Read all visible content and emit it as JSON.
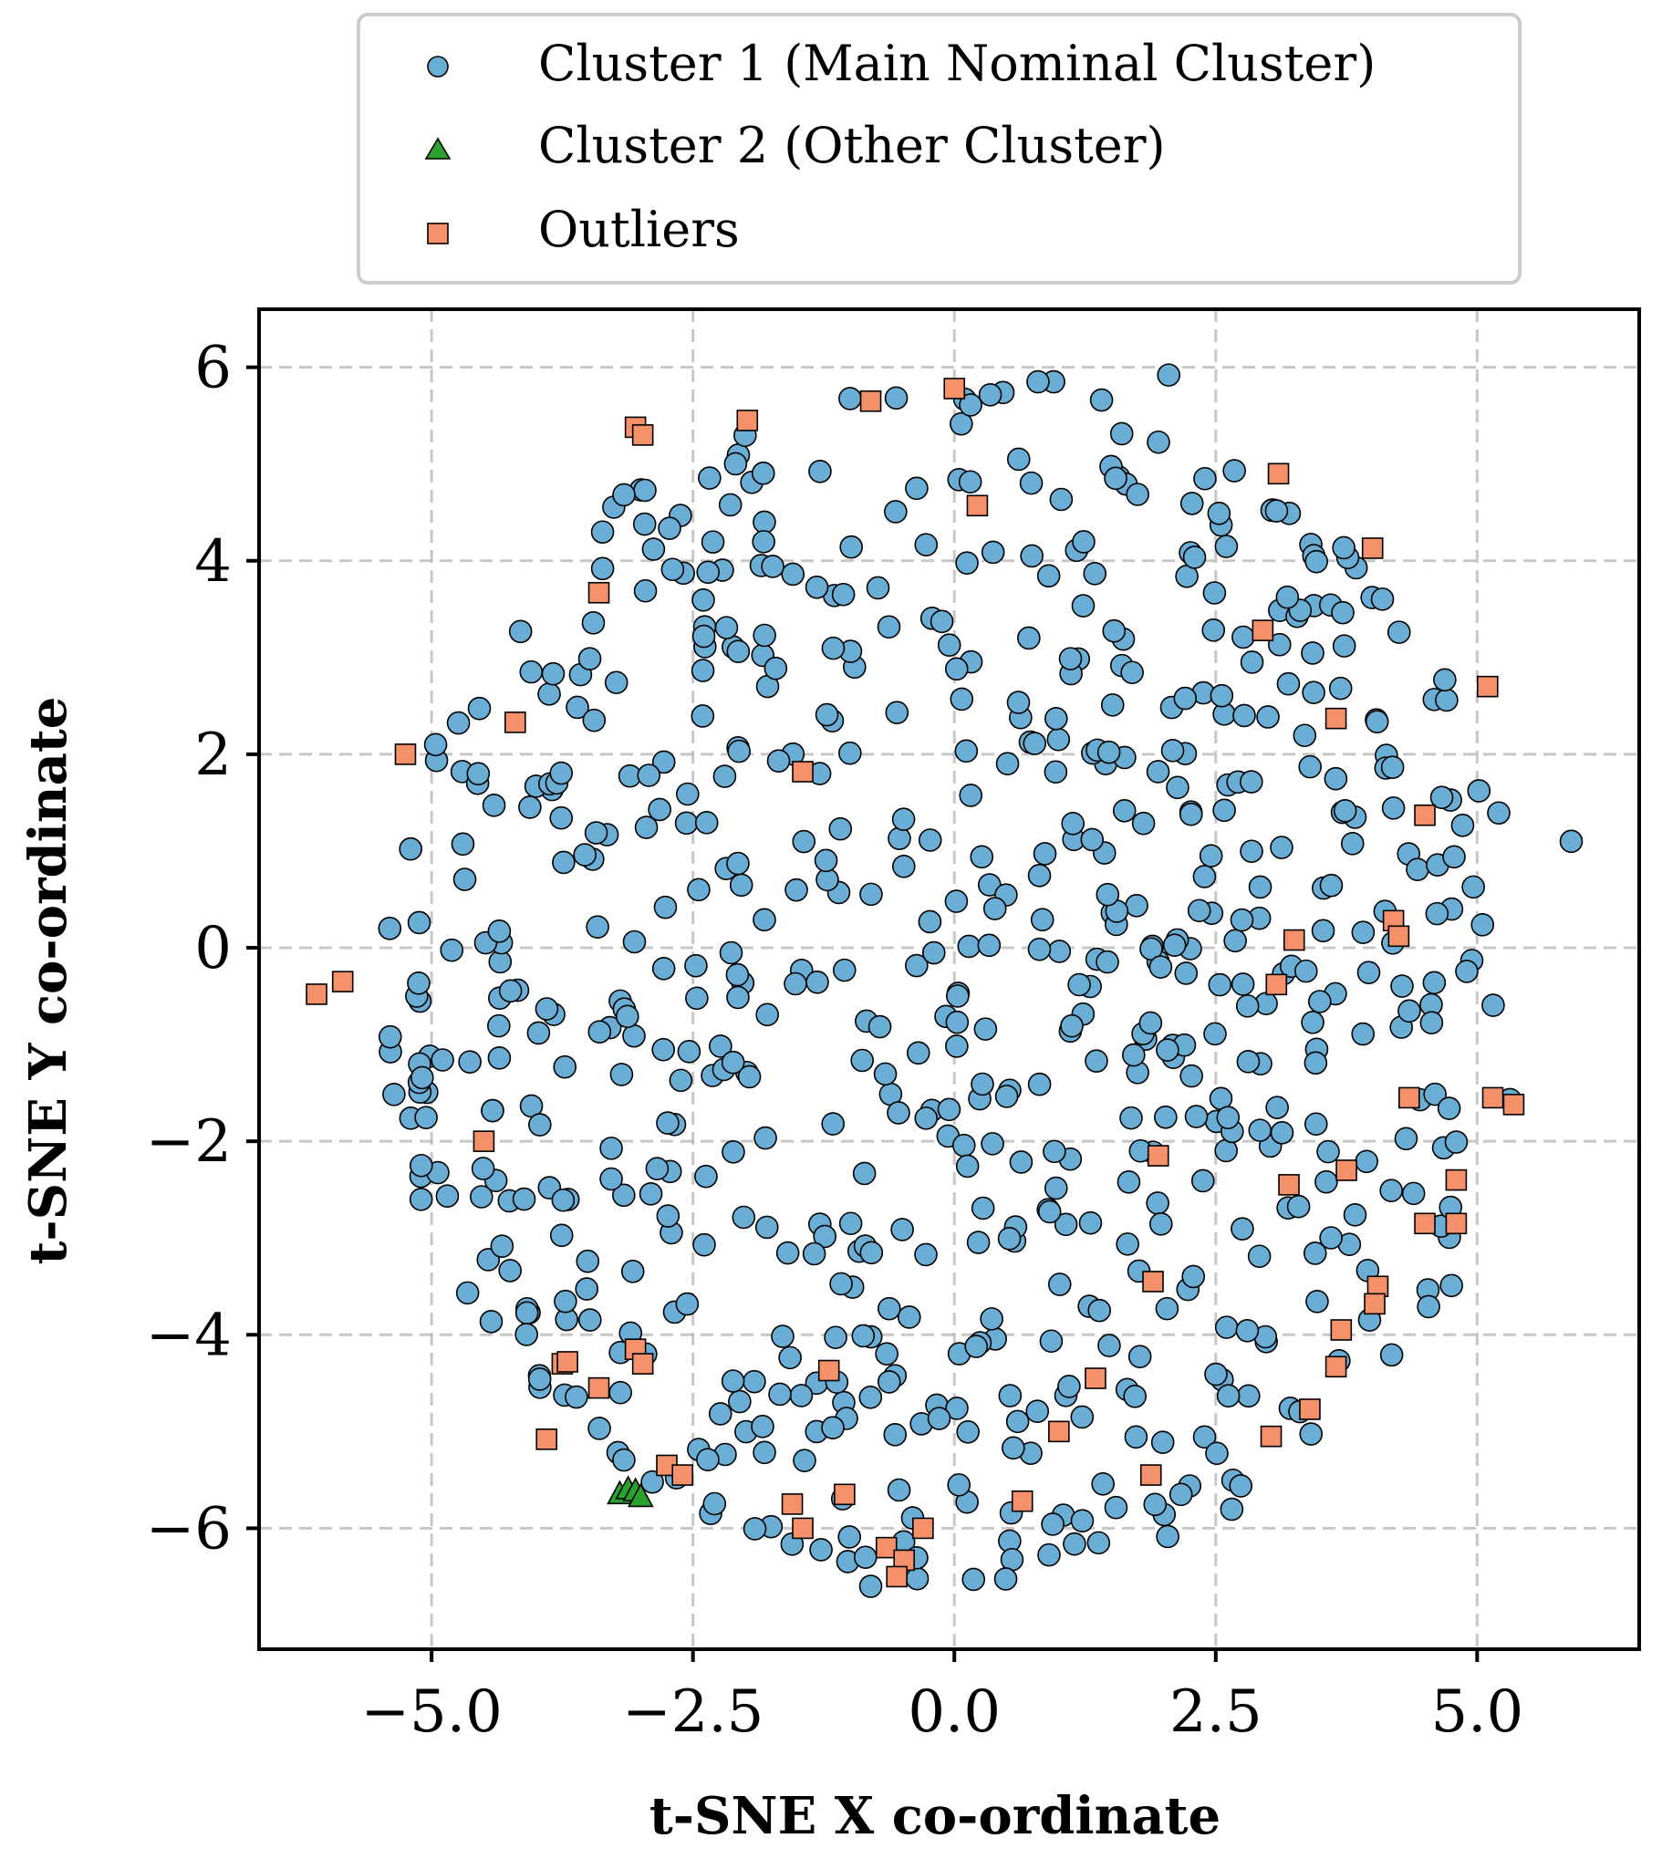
{
  "chart_data": {
    "type": "scatter",
    "xlabel": "t-SNE X co-ordinate",
    "ylabel": "t-SNE Y co-ordinate",
    "xlim": [
      -6.65,
      6.55
    ],
    "ylim": [
      -7.25,
      6.6
    ],
    "xticks": [
      -5.0,
      -2.5,
      0.0,
      2.5,
      5.0
    ],
    "xtick_labels": [
      "−5.0",
      "−2.5",
      "0.0",
      "2.5",
      "5.0"
    ],
    "yticks": [
      -6,
      -4,
      -2,
      0,
      2,
      4,
      6
    ],
    "ytick_labels": [
      "−6",
      "−4",
      "−2",
      "0",
      "2",
      "4",
      "6"
    ],
    "grid": true,
    "legend_position": "top-center (outside plot)",
    "colors": {
      "cluster1": "#6aaed6",
      "cluster2": "#2ca02c",
      "outliers": "#f4916b"
    },
    "series": [
      {
        "name": "Cluster 1 (Main Nominal Cluster)",
        "marker": "circle",
        "seed": 7,
        "count": 700,
        "x_range": [
          -5.5,
          5.5
        ],
        "y_range": [
          -6.6,
          5.9
        ],
        "extra_points": [
          {
            "x": 5.9,
            "y": 1.1
          },
          {
            "x": 2.05,
            "y": 5.92
          },
          {
            "x": 0.95,
            "y": 5.85
          },
          {
            "x": 0.8,
            "y": 5.85
          },
          {
            "x": -5.4,
            "y": 0.2
          },
          {
            "x": -5.1,
            "y": -2.6
          },
          {
            "x": -0.8,
            "y": -6.6
          },
          {
            "x": -0.85,
            "y": -6.3
          }
        ]
      },
      {
        "name": "Cluster 2 (Other Cluster)",
        "marker": "triangle",
        "points": [
          {
            "x": -3.2,
            "y": -5.65
          },
          {
            "x": -3.12,
            "y": -5.6
          },
          {
            "x": -3.05,
            "y": -5.62
          },
          {
            "x": -3.0,
            "y": -5.68
          }
        ]
      },
      {
        "name": "Outliers",
        "marker": "square",
        "points": [
          {
            "x": -3.05,
            "y": 5.38
          },
          {
            "x": -2.98,
            "y": 5.3
          },
          {
            "x": -1.98,
            "y": 5.45
          },
          {
            "x": -0.8,
            "y": 5.65
          },
          {
            "x": 0.0,
            "y": 5.78
          },
          {
            "x": 0.22,
            "y": 4.57
          },
          {
            "x": 3.1,
            "y": 4.9
          },
          {
            "x": 4.0,
            "y": 4.13
          },
          {
            "x": 2.95,
            "y": 3.28
          },
          {
            "x": 5.1,
            "y": 2.7
          },
          {
            "x": 3.65,
            "y": 2.37
          },
          {
            "x": -3.4,
            "y": 3.67
          },
          {
            "x": -4.2,
            "y": 2.33
          },
          {
            "x": -5.25,
            "y": 2.0
          },
          {
            "x": -1.45,
            "y": 1.82
          },
          {
            "x": 4.5,
            "y": 1.37
          },
          {
            "x": 4.2,
            "y": 0.28
          },
          {
            "x": 4.25,
            "y": 0.12
          },
          {
            "x": 3.25,
            "y": 0.08
          },
          {
            "x": 3.08,
            "y": -0.38
          },
          {
            "x": -6.1,
            "y": -0.48
          },
          {
            "x": -5.85,
            "y": -0.35
          },
          {
            "x": -4.5,
            "y": -2.0
          },
          {
            "x": 5.15,
            "y": -1.55
          },
          {
            "x": 5.35,
            "y": -1.62
          },
          {
            "x": 4.35,
            "y": -1.55
          },
          {
            "x": 1.95,
            "y": -2.15
          },
          {
            "x": 3.2,
            "y": -2.45
          },
          {
            "x": 3.75,
            "y": -2.3
          },
          {
            "x": 4.8,
            "y": -2.4
          },
          {
            "x": 4.5,
            "y": -2.85
          },
          {
            "x": 4.8,
            "y": -2.85
          },
          {
            "x": 1.9,
            "y": -3.45
          },
          {
            "x": 4.05,
            "y": -3.5
          },
          {
            "x": 4.02,
            "y": -3.68
          },
          {
            "x": 3.7,
            "y": -3.95
          },
          {
            "x": 3.65,
            "y": -4.33
          },
          {
            "x": 3.4,
            "y": -4.77
          },
          {
            "x": 3.03,
            "y": -5.05
          },
          {
            "x": 1.35,
            "y": -4.45
          },
          {
            "x": 1.0,
            "y": -5.0
          },
          {
            "x": 1.88,
            "y": -5.45
          },
          {
            "x": 0.65,
            "y": -5.72
          },
          {
            "x": -1.2,
            "y": -4.37
          },
          {
            "x": -1.05,
            "y": -5.65
          },
          {
            "x": -1.55,
            "y": -5.75
          },
          {
            "x": -1.45,
            "y": -6.0
          },
          {
            "x": -0.3,
            "y": -6.0
          },
          {
            "x": -0.65,
            "y": -6.2
          },
          {
            "x": -0.48,
            "y": -6.33
          },
          {
            "x": -0.55,
            "y": -6.5
          },
          {
            "x": -3.75,
            "y": -4.3
          },
          {
            "x": -3.7,
            "y": -4.28
          },
          {
            "x": -3.4,
            "y": -4.55
          },
          {
            "x": -3.05,
            "y": -4.15
          },
          {
            "x": -2.98,
            "y": -4.3
          },
          {
            "x": -3.9,
            "y": -5.08
          },
          {
            "x": -2.75,
            "y": -5.35
          },
          {
            "x": -2.6,
            "y": -5.45
          }
        ]
      }
    ]
  }
}
